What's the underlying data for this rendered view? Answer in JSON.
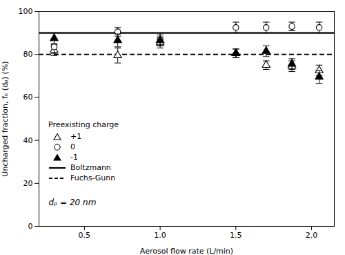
{
  "chart_data": {
    "type": "scatter",
    "xlabel": "Aerosol flow rate (L/min)",
    "ylabel": "Uncharged fraction, fₒ (dₚ) (%)",
    "xlim": [
      0.2,
      2.15
    ],
    "ylim": [
      0,
      100
    ],
    "xticks": [
      0.5,
      {
        "value": 1.0,
        "label": "1.0"
      },
      1.5,
      {
        "value": 2.0,
        "label": "2.0"
      }
    ],
    "yticks": [
      0,
      20,
      40,
      60,
      80,
      100
    ],
    "grid": false,
    "legend": "lower left",
    "legend_title": "Preexisting charge",
    "annotation": "dₚ = 20 nm",
    "series": [
      {
        "name": "+1",
        "marker": "open-triangle",
        "color": "black",
        "x": [
          0.3,
          0.72,
          1.0,
          1.5,
          1.7,
          1.87,
          2.05
        ],
        "values": [
          82.0,
          79.5,
          85.5,
          80.5,
          75.0,
          74.5,
          72.5
        ],
        "errors": [
          2.5,
          3.5,
          2.5,
          2.0,
          2.0,
          2.5,
          2.5
        ]
      },
      {
        "name": "0",
        "marker": "open-circle",
        "color": "black",
        "x": [
          0.3,
          0.72,
          1.0,
          1.5,
          1.7,
          1.87,
          2.05
        ],
        "values": [
          83.5,
          90.5,
          87.0,
          92.5,
          92.5,
          93.0,
          92.5
        ],
        "errors": [
          3.0,
          2.0,
          3.0,
          2.5,
          2.5,
          2.0,
          2.5
        ]
      },
      {
        "name": "-1",
        "marker": "triangle",
        "color": "black",
        "x": [
          0.3,
          0.72,
          1.0,
          1.5,
          1.7,
          1.87,
          2.05
        ],
        "values": [
          87.5,
          86.5,
          86.5,
          80.5,
          81.5,
          75.5,
          69.5
        ],
        "errors": [
          2.5,
          3.0,
          2.5,
          2.0,
          2.5,
          2.5,
          3.0
        ]
      },
      {
        "name": "Boltzmann",
        "type": "hline",
        "values": [
          90.0
        ],
        "line_style": "solid",
        "color": "black"
      },
      {
        "name": "Fuchs-Gunn",
        "type": "hline",
        "values": [
          80.0
        ],
        "line_style": "dashed",
        "color": "black"
      }
    ]
  }
}
